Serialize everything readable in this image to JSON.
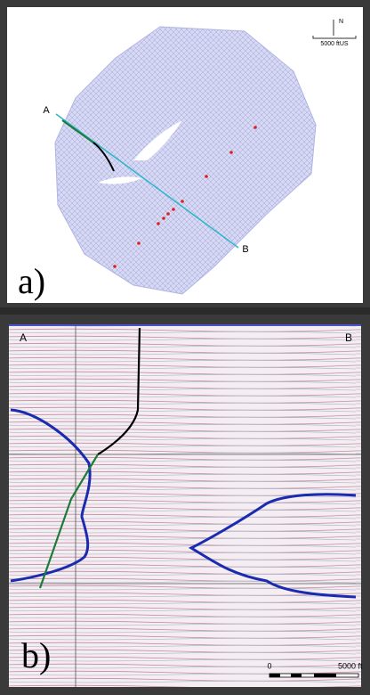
{
  "panel_a": {
    "label": "a)",
    "section_start": "A",
    "section_end": "B",
    "north": "N",
    "scale": "5000 ftUS"
  },
  "panel_b": {
    "label": "b)",
    "left_end": "A",
    "right_end": "B",
    "scale_start": "0",
    "scale_end": "5000 ft"
  }
}
